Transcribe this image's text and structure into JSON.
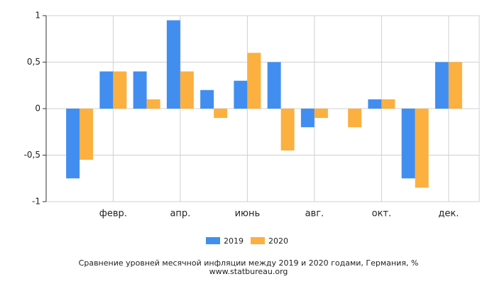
{
  "chart_data": {
    "type": "bar",
    "title": "Сравнение уровней месячной инфляции между 2019 и 2020 годами, Германия, %",
    "source": "www.statbureau.org",
    "categories": [
      null,
      "февр.",
      null,
      "апр.",
      null,
      "июнь",
      null,
      "авг.",
      null,
      "окт.",
      null,
      "дек."
    ],
    "series": [
      {
        "name": "2019",
        "color": "#418ef0",
        "values": [
          -0.75,
          0.4,
          0.4,
          0.95,
          0.2,
          0.3,
          0.5,
          -0.2,
          0,
          0.1,
          -0.75,
          0.5
        ]
      },
      {
        "name": "2020",
        "color": "#fbb040",
        "values": [
          -0.55,
          0.4,
          0.1,
          0.4,
          -0.1,
          0.6,
          -0.45,
          -0.1,
          -0.2,
          0.1,
          -0.85,
          0.5
        ]
      }
    ],
    "ylim": [
      -1,
      1
    ],
    "yticks": [
      -1,
      {
        "value": -0.5,
        "label": "-0,5"
      },
      0,
      {
        "value": 0.5,
        "label": "0,5"
      },
      1
    ],
    "grid": true
  }
}
